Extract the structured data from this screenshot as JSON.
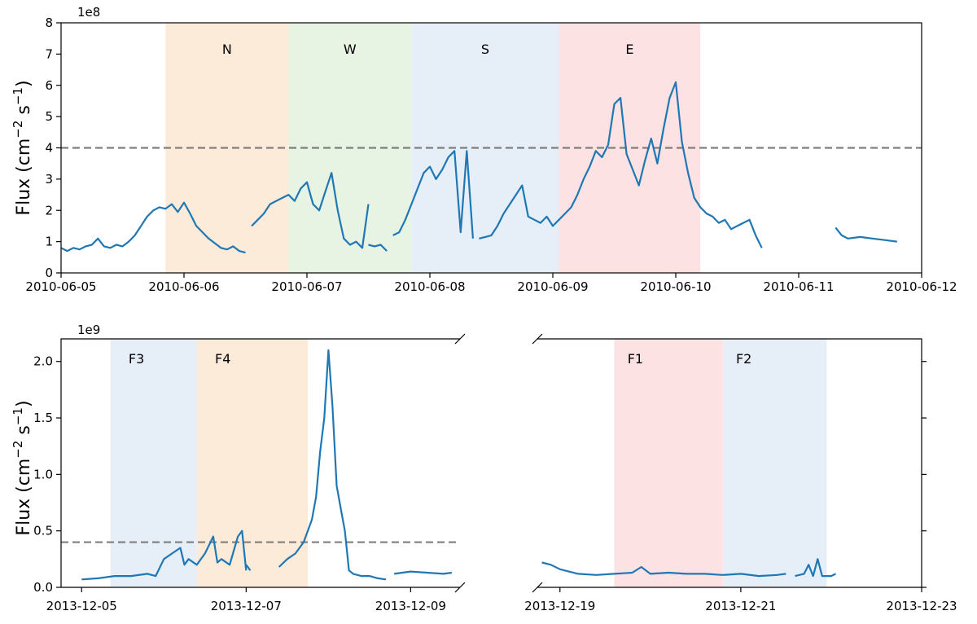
{
  "chart_data": [
    {
      "type": "line",
      "panel": "top",
      "ylabel": "Flux (cm$^{-2}$ s$^{-1}$)",
      "ylabel_parts": {
        "base": "Flux (cm",
        "exp1": "−2",
        "mid": " s",
        "exp2": "−1",
        "end": ")"
      },
      "y_exponent": "1e8",
      "xlim": [
        "2010-06-05",
        "2010-06-12"
      ],
      "ylim": [
        0,
        8
      ],
      "xticks": [
        "2010-06-05",
        "2010-06-06",
        "2010-06-07",
        "2010-06-08",
        "2010-06-09",
        "2010-06-10",
        "2010-06-11",
        "2010-06-12"
      ],
      "yticks": [
        0,
        1,
        2,
        3,
        4,
        5,
        6,
        7,
        8
      ],
      "threshold": 4,
      "bands": [
        {
          "label": "N",
          "start": 0.85,
          "end": 1.85,
          "color": "#fdebd9"
        },
        {
          "label": "W",
          "start": 1.85,
          "end": 2.85,
          "color": "#e7f3e3"
        },
        {
          "label": "S",
          "start": 2.85,
          "end": 4.05,
          "color": "#e6eef7"
        },
        {
          "label": "E",
          "start": 4.05,
          "end": 5.2,
          "color": "#fde2e3"
        }
      ],
      "segments": [
        [
          [
            0.0,
            0.8
          ],
          [
            0.05,
            0.7
          ],
          [
            0.1,
            0.8
          ],
          [
            0.15,
            0.75
          ],
          [
            0.2,
            0.85
          ],
          [
            0.25,
            0.9
          ],
          [
            0.3,
            1.1
          ],
          [
            0.35,
            0.85
          ],
          [
            0.4,
            0.8
          ],
          [
            0.45,
            0.9
          ],
          [
            0.5,
            0.85
          ],
          [
            0.55,
            1.0
          ],
          [
            0.6,
            1.2
          ],
          [
            0.65,
            1.5
          ],
          [
            0.7,
            1.8
          ],
          [
            0.75,
            2.0
          ],
          [
            0.8,
            2.1
          ],
          [
            0.85,
            2.05
          ],
          [
            0.9,
            2.2
          ],
          [
            0.95,
            1.95
          ],
          [
            1.0,
            2.25
          ],
          [
            1.05,
            1.9
          ],
          [
            1.1,
            1.5
          ],
          [
            1.15,
            1.3
          ],
          [
            1.2,
            1.1
          ],
          [
            1.25,
            0.95
          ],
          [
            1.3,
            0.8
          ],
          [
            1.35,
            0.75
          ],
          [
            1.4,
            0.85
          ],
          [
            1.45,
            0.7
          ],
          [
            1.5,
            0.65
          ]
        ],
        [
          [
            1.55,
            1.5
          ],
          [
            1.6,
            1.7
          ],
          [
            1.65,
            1.9
          ],
          [
            1.7,
            2.2
          ],
          [
            1.75,
            2.3
          ],
          [
            1.8,
            2.4
          ],
          [
            1.85,
            2.5
          ],
          [
            1.9,
            2.3
          ],
          [
            1.95,
            2.7
          ],
          [
            2.0,
            2.9
          ],
          [
            2.05,
            2.2
          ],
          [
            2.1,
            2.0
          ],
          [
            2.15,
            2.6
          ],
          [
            2.2,
            3.2
          ],
          [
            2.25,
            2.0
          ],
          [
            2.3,
            1.1
          ],
          [
            2.35,
            0.9
          ],
          [
            2.4,
            1.0
          ],
          [
            2.45,
            0.8
          ],
          [
            2.5,
            2.2
          ]
        ],
        [
          [
            2.5,
            0.9
          ],
          [
            2.55,
            0.85
          ],
          [
            2.6,
            0.9
          ],
          [
            2.65,
            0.7
          ]
        ],
        [
          [
            2.7,
            1.2
          ],
          [
            2.75,
            1.3
          ],
          [
            2.8,
            1.7
          ],
          [
            2.85,
            2.2
          ],
          [
            2.9,
            2.7
          ],
          [
            2.95,
            3.2
          ],
          [
            3.0,
            3.4
          ],
          [
            3.05,
            3.0
          ],
          [
            3.1,
            3.3
          ],
          [
            3.15,
            3.7
          ],
          [
            3.2,
            3.9
          ],
          [
            3.25,
            1.3
          ],
          [
            3.3,
            3.9
          ],
          [
            3.35,
            1.1
          ]
        ],
        [
          [
            3.4,
            1.1
          ],
          [
            3.45,
            1.15
          ],
          [
            3.5,
            1.2
          ],
          [
            3.55,
            1.5
          ],
          [
            3.6,
            1.9
          ],
          [
            3.65,
            2.2
          ],
          [
            3.7,
            2.5
          ],
          [
            3.75,
            2.8
          ],
          [
            3.8,
            1.8
          ],
          [
            3.85,
            1.7
          ],
          [
            3.9,
            1.6
          ],
          [
            3.95,
            1.8
          ],
          [
            4.0,
            1.5
          ],
          [
            4.05,
            1.7
          ],
          [
            4.1,
            1.9
          ],
          [
            4.15,
            2.1
          ],
          [
            4.2,
            2.5
          ],
          [
            4.25,
            3.0
          ],
          [
            4.3,
            3.4
          ],
          [
            4.35,
            3.9
          ],
          [
            4.4,
            3.7
          ],
          [
            4.45,
            4.1
          ],
          [
            4.5,
            5.4
          ],
          [
            4.55,
            5.6
          ],
          [
            4.6,
            3.8
          ],
          [
            4.65,
            3.3
          ],
          [
            4.7,
            2.8
          ],
          [
            4.75,
            3.6
          ],
          [
            4.8,
            4.3
          ],
          [
            4.85,
            3.5
          ],
          [
            4.9,
            4.6
          ],
          [
            4.95,
            5.6
          ],
          [
            5.0,
            6.1
          ],
          [
            5.05,
            4.2
          ],
          [
            5.1,
            3.2
          ],
          [
            5.15,
            2.4
          ],
          [
            5.2,
            2.1
          ],
          [
            5.25,
            1.9
          ],
          [
            5.3,
            1.8
          ],
          [
            5.35,
            1.6
          ],
          [
            5.4,
            1.7
          ],
          [
            5.45,
            1.4
          ],
          [
            5.5,
            1.5
          ],
          [
            5.55,
            1.6
          ],
          [
            5.6,
            1.7
          ],
          [
            5.65,
            1.2
          ],
          [
            5.7,
            0.8
          ]
        ],
        [
          [
            6.3,
            1.45
          ],
          [
            6.35,
            1.2
          ],
          [
            6.4,
            1.1
          ],
          [
            6.5,
            1.15
          ],
          [
            6.6,
            1.1
          ],
          [
            6.7,
            1.05
          ],
          [
            6.8,
            1.0
          ]
        ]
      ]
    },
    {
      "type": "line",
      "panel": "bottom-left",
      "ylabel": "Flux (cm$^{-2}$ s$^{-1}$)",
      "ylabel_parts": {
        "base": "Flux (cm",
        "exp1": "−2",
        "mid": " s",
        "exp2": "−1",
        "end": ")"
      },
      "y_exponent": "1e9",
      "xlim": [
        "2013-12-04.75",
        "2013-12-09.6"
      ],
      "ylim": [
        0,
        2.2
      ],
      "xticks": [
        "2013-12-05",
        "2013-12-07",
        "2013-12-09"
      ],
      "yticks": [
        "0.0",
        "0.5",
        "1.0",
        "1.5",
        "2.0"
      ],
      "threshold": 0.4,
      "bands": [
        {
          "label": "F3",
          "start": 5.35,
          "end": 6.4,
          "color": "#e6eef7"
        },
        {
          "label": "F4",
          "start": 6.4,
          "end": 7.75,
          "color": "#fdebd9"
        }
      ],
      "segments": [
        [
          [
            5.0,
            0.07
          ],
          [
            5.2,
            0.08
          ],
          [
            5.4,
            0.1
          ],
          [
            5.6,
            0.1
          ],
          [
            5.8,
            0.12
          ],
          [
            5.9,
            0.1
          ],
          [
            6.0,
            0.25
          ],
          [
            6.1,
            0.3
          ],
          [
            6.2,
            0.35
          ],
          [
            6.25,
            0.2
          ],
          [
            6.3,
            0.25
          ],
          [
            6.4,
            0.2
          ],
          [
            6.5,
            0.3
          ],
          [
            6.6,
            0.45
          ],
          [
            6.65,
            0.22
          ],
          [
            6.7,
            0.25
          ],
          [
            6.8,
            0.2
          ],
          [
            6.9,
            0.45
          ],
          [
            6.95,
            0.5
          ],
          [
            7.0,
            0.15
          ]
        ],
        [
          [
            7.0,
            0.2
          ],
          [
            7.05,
            0.15
          ]
        ],
        [
          [
            7.4,
            0.18
          ],
          [
            7.5,
            0.25
          ],
          [
            7.6,
            0.3
          ],
          [
            7.7,
            0.4
          ],
          [
            7.8,
            0.6
          ],
          [
            7.85,
            0.8
          ],
          [
            7.9,
            1.2
          ],
          [
            7.95,
            1.5
          ],
          [
            8.0,
            2.1
          ],
          [
            8.05,
            1.6
          ],
          [
            8.1,
            0.9
          ],
          [
            8.15,
            0.7
          ],
          [
            8.2,
            0.5
          ],
          [
            8.25,
            0.15
          ],
          [
            8.3,
            0.12
          ],
          [
            8.4,
            0.1
          ],
          [
            8.5,
            0.1
          ],
          [
            8.6,
            0.08
          ],
          [
            8.7,
            0.07
          ]
        ],
        [
          [
            8.8,
            0.12
          ],
          [
            9.0,
            0.14
          ],
          [
            9.2,
            0.13
          ],
          [
            9.4,
            0.12
          ],
          [
            9.5,
            0.13
          ]
        ]
      ]
    },
    {
      "type": "line",
      "panel": "bottom-right",
      "xlim": [
        "2013-12-18.75",
        "2013-12-23"
      ],
      "ylim": [
        0,
        2.2
      ],
      "xticks": [
        "2013-12-19",
        "2013-12-21",
        "2013-12-23"
      ],
      "bands": [
        {
          "label": "F1",
          "start": 19.6,
          "end": 20.8,
          "color": "#fde2e3"
        },
        {
          "label": "F2",
          "start": 20.8,
          "end": 21.95,
          "color": "#e6eef7"
        }
      ],
      "segments": [
        [
          [
            18.8,
            0.22
          ],
          [
            18.9,
            0.2
          ],
          [
            19.0,
            0.16
          ],
          [
            19.2,
            0.12
          ],
          [
            19.4,
            0.11
          ],
          [
            19.6,
            0.12
          ],
          [
            19.8,
            0.13
          ],
          [
            19.9,
            0.18
          ],
          [
            20.0,
            0.12
          ],
          [
            20.2,
            0.13
          ],
          [
            20.4,
            0.12
          ],
          [
            20.6,
            0.12
          ],
          [
            20.8,
            0.11
          ],
          [
            21.0,
            0.12
          ],
          [
            21.2,
            0.1
          ],
          [
            21.4,
            0.11
          ],
          [
            21.5,
            0.12
          ]
        ],
        [
          [
            21.6,
            0.1
          ],
          [
            21.7,
            0.12
          ],
          [
            21.75,
            0.2
          ],
          [
            21.8,
            0.1
          ],
          [
            21.85,
            0.25
          ],
          [
            21.9,
            0.1
          ],
          [
            22.0,
            0.1
          ],
          [
            22.05,
            0.12
          ]
        ]
      ]
    }
  ]
}
